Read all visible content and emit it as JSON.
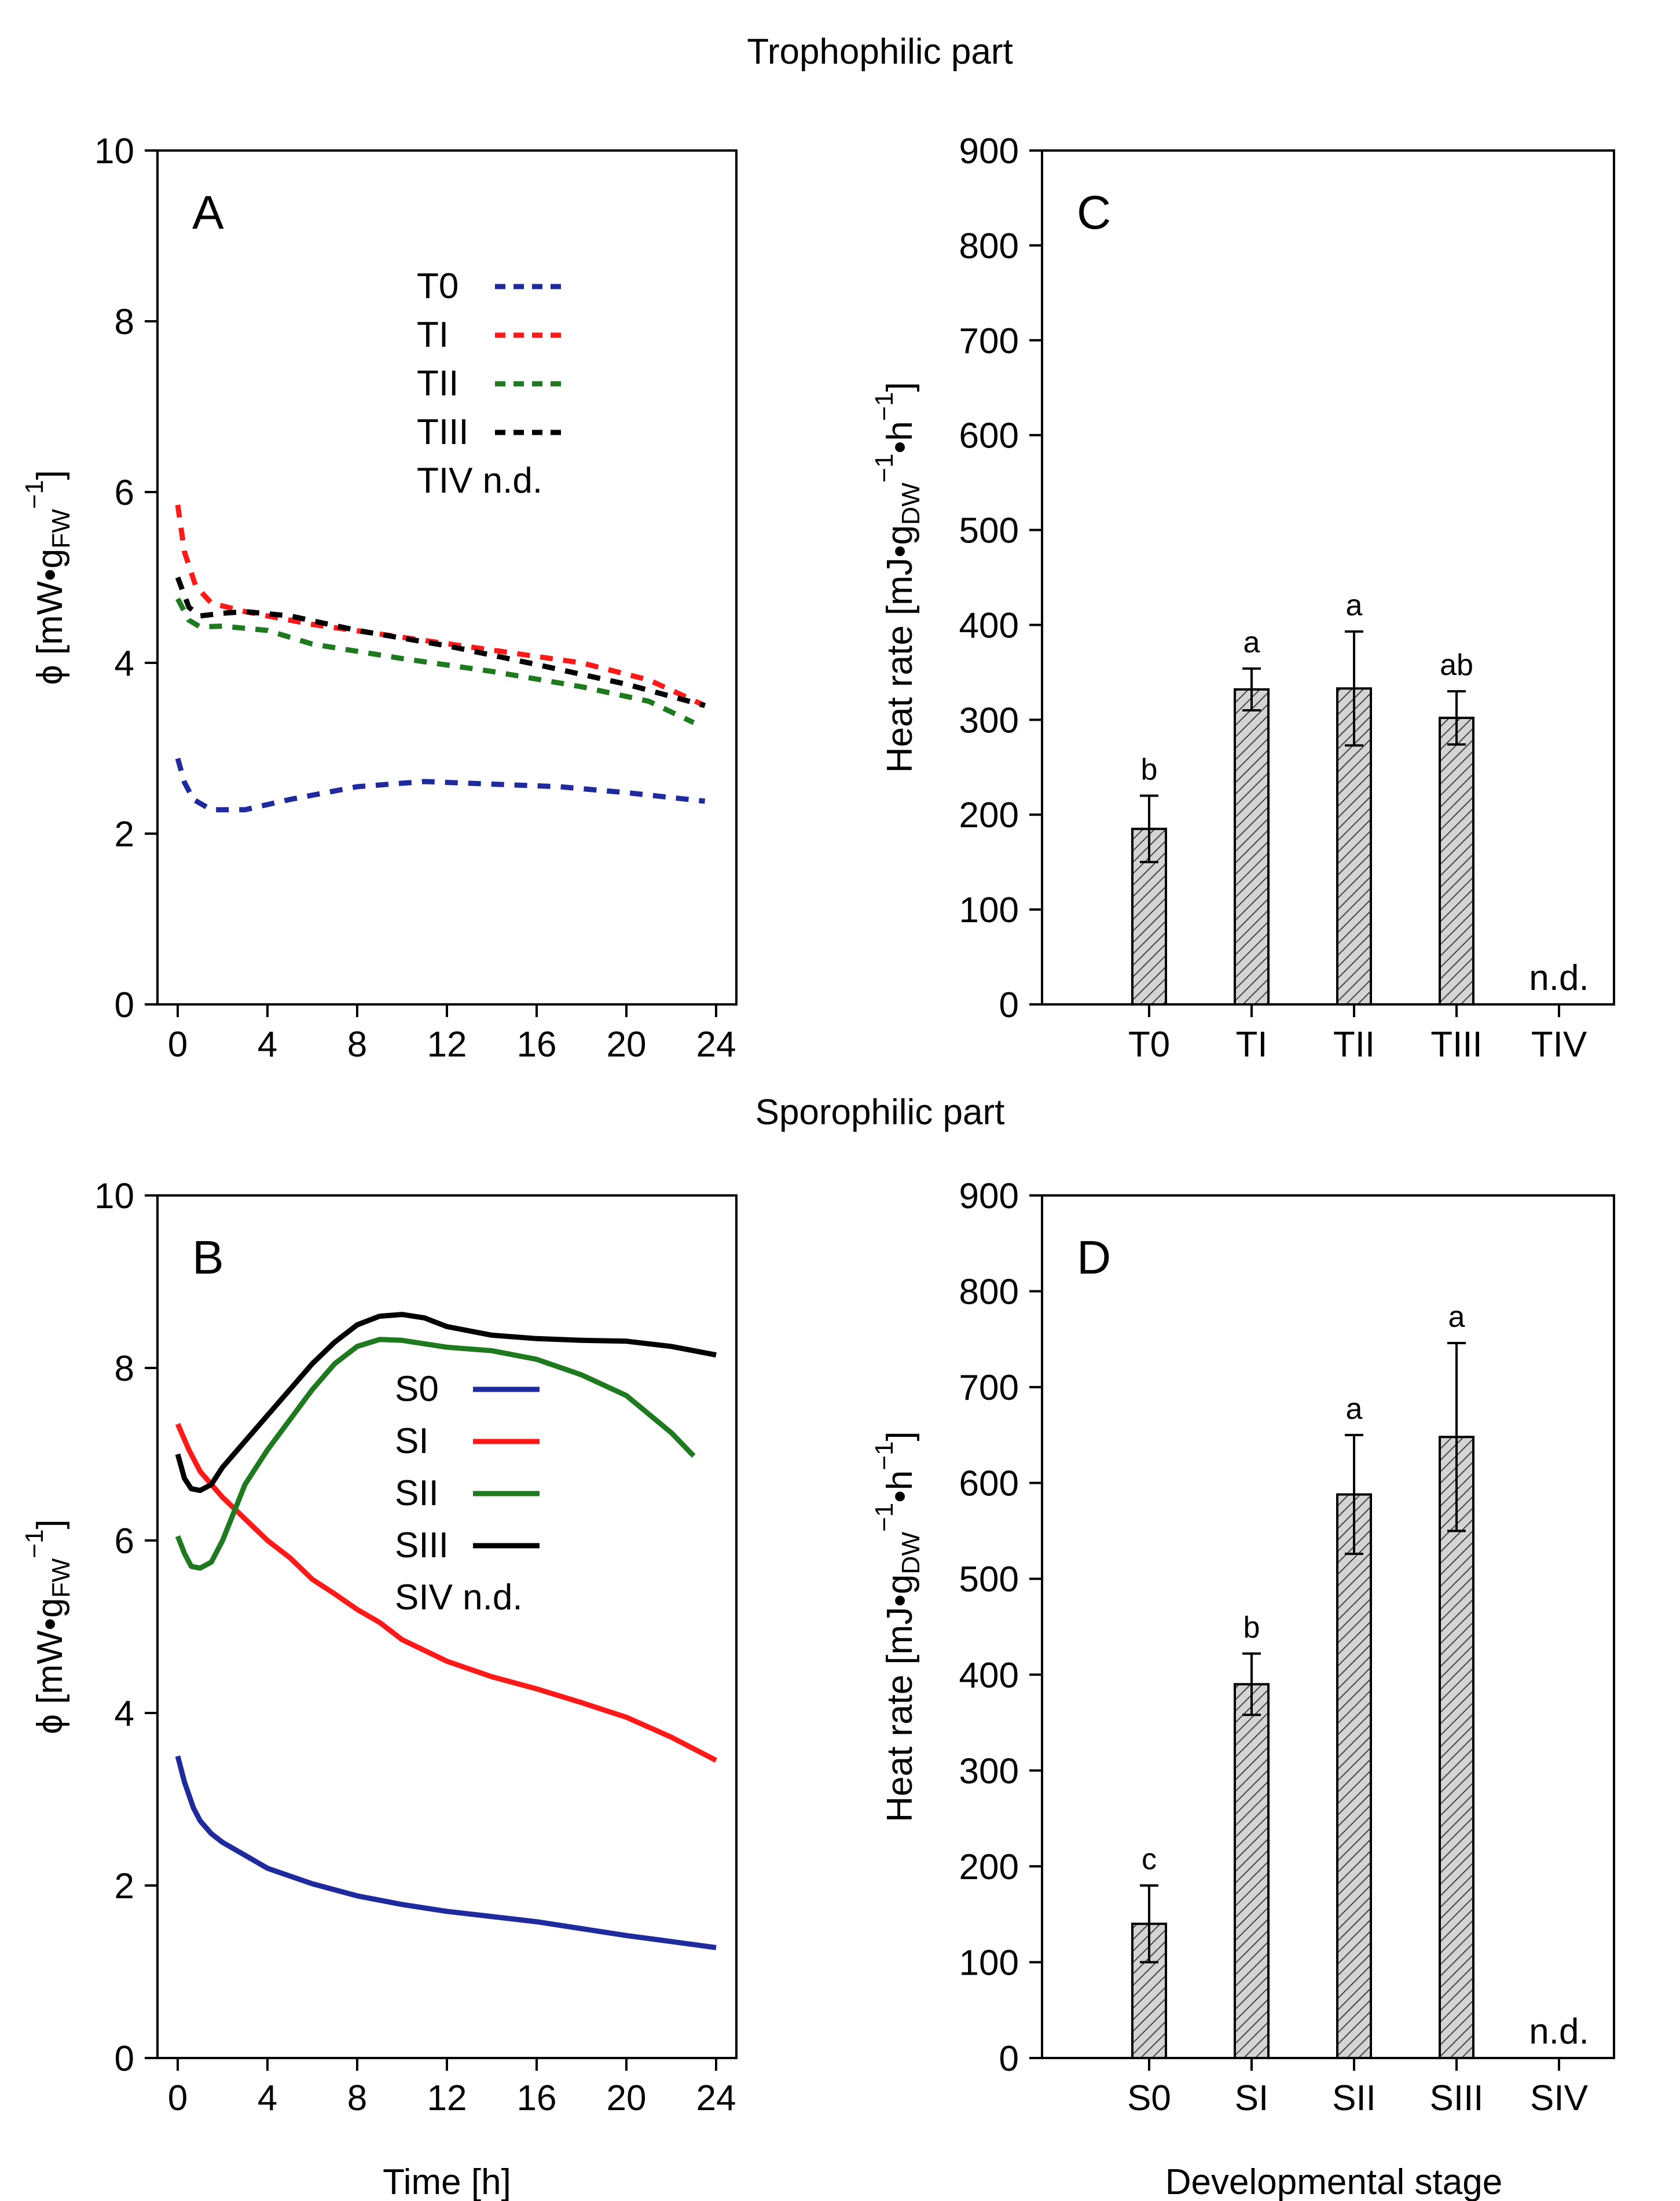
{
  "sections": {
    "top_title": "Trophophilic part",
    "bottom_title": "Sporophilic part"
  },
  "colors": {
    "blue": "#1f2a9c",
    "red": "#ff1a1a",
    "green": "#1f7a1f",
    "black": "#000000",
    "bar_fill": "#cfcfcf"
  },
  "chart_data": [
    {
      "id": "A",
      "panel_label": "A",
      "type": "line",
      "line_style": "dashed",
      "xlabel": "",
      "ylabel_main": "ϕ [mW•g",
      "ylabel_sub": "FW",
      "ylabel_sup": "−1",
      "ylabel_close": "]",
      "xlim": [
        0,
        24
      ],
      "ylim": [
        0,
        10
      ],
      "xticks": [
        0,
        4,
        8,
        12,
        16,
        20,
        24
      ],
      "yticks": [
        0,
        2,
        4,
        6,
        8,
        10
      ],
      "legend_placement": "upper-middle",
      "legend_note": "TIV n.d.",
      "series": [
        {
          "name": "T0",
          "color": "#1f2a9c",
          "x": [
            0,
            0.3,
            0.7,
            1.5,
            3,
            5,
            8,
            11,
            14,
            17,
            20,
            23.5
          ],
          "y": [
            2.88,
            2.6,
            2.4,
            2.28,
            2.28,
            2.4,
            2.55,
            2.61,
            2.58,
            2.55,
            2.48,
            2.38
          ]
        },
        {
          "name": "TI",
          "color": "#ff1a1a",
          "x": [
            0,
            0.3,
            0.8,
            1.5,
            3,
            6,
            10,
            14,
            18,
            21,
            23.5
          ],
          "y": [
            5.85,
            5.3,
            4.9,
            4.7,
            4.6,
            4.45,
            4.3,
            4.15,
            4.0,
            3.8,
            3.5
          ]
        },
        {
          "name": "TII",
          "color": "#1f7a1f",
          "x": [
            0,
            0.5,
            1,
            2,
            4,
            6,
            10,
            14,
            18,
            21,
            23
          ],
          "y": [
            4.75,
            4.5,
            4.42,
            4.43,
            4.38,
            4.22,
            4.05,
            3.9,
            3.72,
            3.55,
            3.3
          ]
        },
        {
          "name": "TIII",
          "color": "#000000",
          "x": [
            0,
            0.5,
            1,
            2,
            3,
            5,
            8,
            12,
            16,
            20,
            23.5
          ],
          "y": [
            5.0,
            4.65,
            4.55,
            4.58,
            4.6,
            4.55,
            4.38,
            4.2,
            3.98,
            3.75,
            3.5
          ]
        }
      ]
    },
    {
      "id": "B",
      "panel_label": "B",
      "type": "line",
      "line_style": "solid",
      "xlabel": "Time [h]",
      "ylabel_main": "ϕ [mW•g",
      "ylabel_sub": "FW",
      "ylabel_sup": "−1",
      "ylabel_close": "]",
      "xlim": [
        0,
        24
      ],
      "ylim": [
        0,
        10
      ],
      "xticks": [
        0,
        4,
        8,
        12,
        16,
        20,
        24
      ],
      "yticks": [
        0,
        2,
        4,
        6,
        8,
        10
      ],
      "legend_placement": "middle",
      "legend_note": "SIV n.d.",
      "series": [
        {
          "name": "S0",
          "color": "#1f2a9c",
          "x": [
            0,
            0.3,
            0.7,
            1,
            1.5,
            2,
            3,
            4,
            6,
            8,
            10,
            12,
            14,
            16,
            18,
            20,
            22,
            24
          ],
          "y": [
            3.5,
            3.2,
            2.9,
            2.75,
            2.6,
            2.5,
            2.35,
            2.2,
            2.02,
            1.88,
            1.78,
            1.7,
            1.64,
            1.58,
            1.5,
            1.42,
            1.35,
            1.28
          ]
        },
        {
          "name": "SI",
          "color": "#ff1a1a",
          "x": [
            0,
            0.5,
            1,
            2,
            3,
            4,
            5,
            6,
            7,
            8,
            9,
            10,
            12,
            14,
            16,
            18,
            20,
            22,
            24
          ],
          "y": [
            7.35,
            7.05,
            6.8,
            6.5,
            6.25,
            6.0,
            5.8,
            5.55,
            5.38,
            5.2,
            5.05,
            4.85,
            4.6,
            4.42,
            4.28,
            4.12,
            3.95,
            3.72,
            3.45
          ]
        },
        {
          "name": "SII",
          "color": "#1f7a1f",
          "x": [
            0,
            0.3,
            0.6,
            1,
            1.5,
            2,
            3,
            4,
            5,
            6,
            7,
            8,
            9,
            10,
            12,
            14,
            16,
            18,
            20,
            22,
            23
          ],
          "y": [
            6.05,
            5.85,
            5.7,
            5.68,
            5.75,
            6.0,
            6.65,
            7.05,
            7.4,
            7.75,
            8.05,
            8.25,
            8.33,
            8.32,
            8.24,
            8.2,
            8.1,
            7.92,
            7.68,
            7.25,
            6.98
          ]
        },
        {
          "name": "SIII",
          "color": "#000000",
          "x": [
            0,
            0.3,
            0.6,
            1,
            1.5,
            2,
            3,
            4,
            5,
            6,
            7,
            8,
            9,
            10,
            11,
            12,
            14,
            16,
            18,
            20,
            22,
            24
          ],
          "y": [
            7.0,
            6.72,
            6.6,
            6.58,
            6.65,
            6.85,
            7.15,
            7.45,
            7.75,
            8.05,
            8.3,
            8.5,
            8.6,
            8.62,
            8.58,
            8.48,
            8.38,
            8.34,
            8.32,
            8.31,
            8.25,
            8.15
          ]
        }
      ]
    },
    {
      "id": "C",
      "panel_label": "C",
      "type": "bar",
      "xlabel": "",
      "ylabel_main": "Heat rate [mJ•g",
      "ylabel_sub": "DW",
      "ylabel_sup": "−1",
      "ylabel_mid": "•h",
      "ylabel_sup2": "−1",
      "ylabel_close": "]",
      "ylim": [
        0,
        900
      ],
      "yticks": [
        0,
        100,
        200,
        300,
        400,
        500,
        600,
        700,
        800,
        900
      ],
      "categories": [
        "T0",
        "TI",
        "TII",
        "TIII",
        "TIV"
      ],
      "values": [
        185,
        332,
        333,
        302,
        null
      ],
      "errors": [
        35,
        22,
        60,
        28,
        null
      ],
      "significance": [
        "b",
        "a",
        "a",
        "ab",
        ""
      ],
      "not_determined_label": "n.d."
    },
    {
      "id": "D",
      "panel_label": "D",
      "type": "bar",
      "xlabel": "Developmental stage",
      "ylabel_main": "Heat rate [mJ•g",
      "ylabel_sub": "DW",
      "ylabel_sup": "−1",
      "ylabel_mid": "•h",
      "ylabel_sup2": "−1",
      "ylabel_close": "]",
      "ylim": [
        0,
        900
      ],
      "yticks": [
        0,
        100,
        200,
        300,
        400,
        500,
        600,
        700,
        800,
        900
      ],
      "categories": [
        "S0",
        "SI",
        "SII",
        "SIII",
        "SIV"
      ],
      "values": [
        140,
        390,
        588,
        648,
        null
      ],
      "errors": [
        40,
        32,
        62,
        98,
        null
      ],
      "significance": [
        "c",
        "b",
        "a",
        "a",
        ""
      ],
      "not_determined_label": "n.d."
    }
  ]
}
